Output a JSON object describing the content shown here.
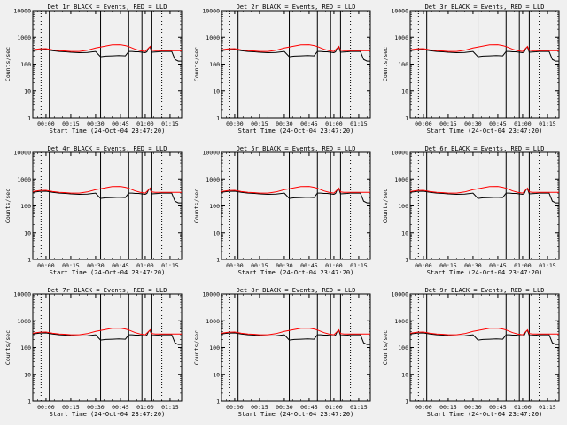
{
  "chart_data": [
    {
      "type": "line",
      "title": "Det 1r BLACK = Events, RED = LLD"
    },
    {
      "type": "line",
      "title": "Det 2r BLACK = Events, RED = LLD"
    },
    {
      "type": "line",
      "title": "Det 3r BLACK = Events, RED = LLD"
    },
    {
      "type": "line",
      "title": "Det 4r BLACK = Events, RED = LLD"
    },
    {
      "type": "line",
      "title": "Det 5r BLACK = Events, RED = LLD"
    },
    {
      "type": "line",
      "title": "Det 6r BLACK = Events, RED = LLD"
    },
    {
      "type": "line",
      "title": "Det 7r BLACK = Events, RED = LLD"
    },
    {
      "type": "line",
      "title": "Det 8r BLACK = Events, RED = LLD"
    },
    {
      "type": "line",
      "title": "Det 9r BLACK = Events, RED = LLD"
    }
  ],
  "shared": {
    "xlabel": "Start Time (24-Oct-04 23:47:20)",
    "ylabel": "Counts/sec",
    "yscale": "log",
    "ylim": [
      1,
      10000
    ],
    "xlim_minutes": [
      -8,
      82
    ],
    "xtick_labels": [
      "00:00",
      "00:15",
      "00:30",
      "00:45",
      "01:00",
      "01:15"
    ],
    "xtick_values": [
      0,
      15,
      30,
      45,
      60,
      75
    ],
    "ytick_labels": [
      "1",
      "10",
      "100",
      "1000",
      "10000"
    ],
    "ytick_values": [
      1,
      10,
      100,
      1000,
      10000
    ],
    "colors": {
      "events": "#000000",
      "lld": "#ff0000"
    },
    "series": [
      {
        "name": "BLACK = Events",
        "color": "#000000",
        "x": [
          -8,
          -4,
          0,
          4,
          8,
          12,
          15,
          20,
          25,
          30,
          33,
          36,
          40,
          44,
          48,
          50,
          52,
          54,
          56,
          58,
          60,
          61,
          62,
          63,
          64,
          66,
          68,
          70,
          74,
          76,
          78,
          80,
          82
        ],
        "y": [
          320,
          345,
          350,
          320,
          300,
          290,
          280,
          270,
          275,
          300,
          190,
          200,
          205,
          210,
          205,
          300,
          300,
          290,
          290,
          280,
          270,
          290,
          400,
          430,
          280,
          285,
          290,
          300,
          300,
          300,
          150,
          130,
          130
        ]
      },
      {
        "name": "RED = LLD",
        "color": "#ff0000",
        "x": [
          -8,
          -4,
          0,
          4,
          8,
          12,
          15,
          20,
          25,
          30,
          35,
          40,
          45,
          48,
          50,
          54,
          57,
          60,
          62,
          63,
          64,
          66,
          70,
          74,
          78,
          82
        ],
        "y": [
          340,
          370,
          380,
          340,
          320,
          310,
          300,
          300,
          330,
          400,
          460,
          520,
          530,
          490,
          450,
          360,
          320,
          300,
          400,
          460,
          330,
          320,
          320,
          320,
          320,
          320
        ]
      }
    ],
    "dotted_lines_x": [
      -3,
      70
    ],
    "solid_lines_x": [
      2,
      33,
      50,
      58,
      64
    ]
  }
}
